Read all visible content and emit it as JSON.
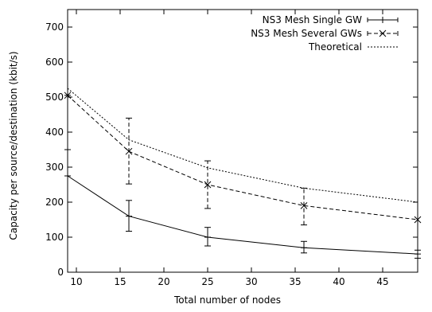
{
  "chart_data": {
    "type": "line",
    "title": "",
    "xlabel": "Total number of nodes",
    "ylabel": "Capacity per source/destination (kbit/s)",
    "xlim": [
      9,
      49
    ],
    "ylim": [
      0,
      750
    ],
    "xticks": [
      10,
      15,
      20,
      25,
      30,
      35,
      40,
      45
    ],
    "yticks": [
      0,
      100,
      200,
      300,
      400,
      500,
      600,
      700
    ],
    "grid": false,
    "legend_position": "top-right",
    "series": [
      {
        "name": "NS3 Mesh Single GW",
        "style": "solid",
        "marker": "plus",
        "color": "#000000",
        "x": [
          9,
          16,
          25,
          36,
          49
        ],
        "y": [
          275,
          160,
          100,
          70,
          52
        ],
        "err_low": [
          275,
          117,
          75,
          55,
          40
        ],
        "err_high": [
          275,
          205,
          128,
          88,
          63
        ]
      },
      {
        "name": "NS3 Mesh Several GWs",
        "style": "dashed",
        "marker": "x",
        "color": "#000000",
        "x": [
          9,
          16,
          25,
          36,
          49
        ],
        "y": [
          505,
          345,
          250,
          190,
          150
        ],
        "err_low": [
          350,
          252,
          182,
          135,
          150
        ],
        "err_high": [
          505,
          440,
          318,
          240,
          150
        ]
      },
      {
        "name": "Theoretical",
        "style": "dotted",
        "marker": "none",
        "color": "#000000",
        "x": [
          9,
          16,
          25,
          36,
          49
        ],
        "y": [
          525,
          378,
          298,
          240,
          200
        ]
      }
    ]
  }
}
